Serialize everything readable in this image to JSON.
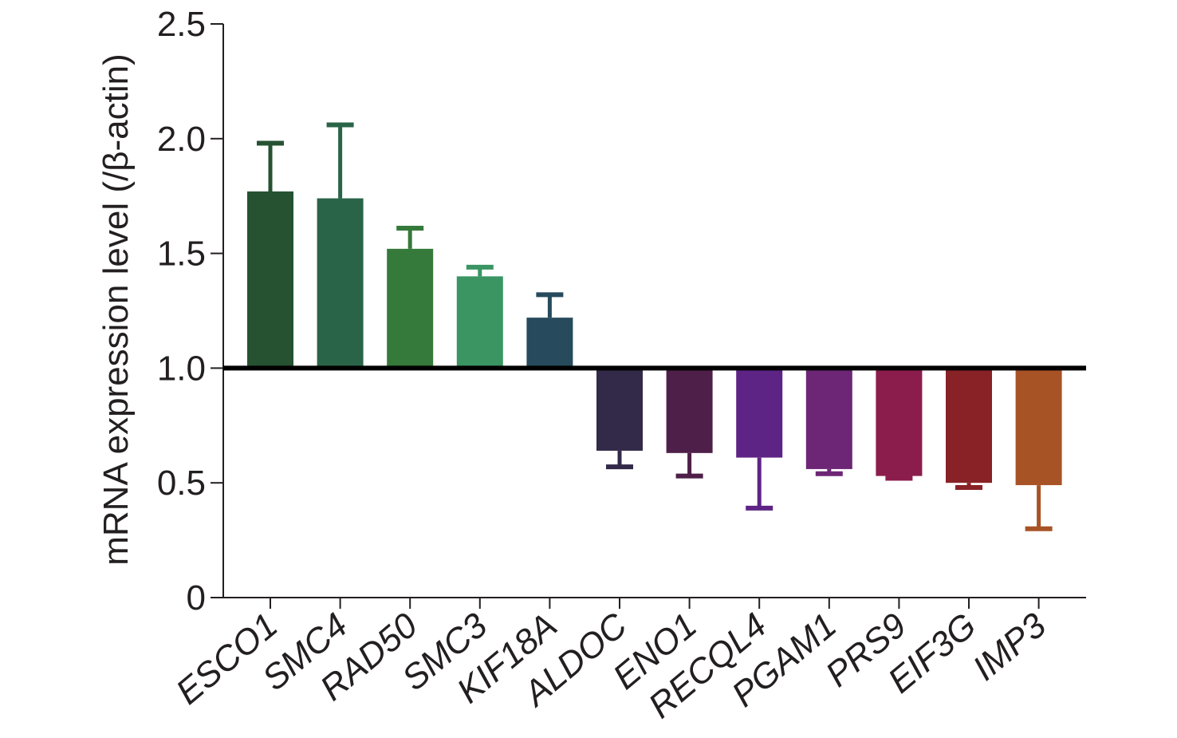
{
  "chart_data": {
    "type": "bar",
    "xlabel": "",
    "ylabel": "mRNA expression level (/β-actin)",
    "ylim": [
      0,
      2.5
    ],
    "yticks": [
      0,
      0.5,
      1.0,
      1.5,
      2.0,
      2.5
    ],
    "ytick_labels": [
      "0",
      "0.5",
      "1.0",
      "1.5",
      "2.0",
      "2.5"
    ],
    "baseline": 1.0,
    "grid": false,
    "categories": [
      "ESCO1",
      "SMC4",
      "RAD50",
      "SMC3",
      "KIF18A",
      "ALDOC",
      "ENO1",
      "RECQL4",
      "PGAM1",
      "PRS9",
      "EIF3G",
      "IMP3"
    ],
    "values": [
      1.77,
      1.74,
      1.52,
      1.4,
      1.22,
      0.64,
      0.63,
      0.61,
      0.56,
      0.53,
      0.5,
      0.49
    ],
    "error": [
      0.21,
      0.32,
      0.09,
      0.04,
      0.1,
      0.07,
      0.1,
      0.22,
      0.02,
      0.01,
      0.02,
      0.19
    ],
    "colors": [
      "#265232",
      "#2a6448",
      "#357a3a",
      "#3a9563",
      "#274b5c",
      "#332948",
      "#4e1f48",
      "#5e2485",
      "#6d2676",
      "#8b1d4c",
      "#882226",
      "#a85326"
    ]
  }
}
